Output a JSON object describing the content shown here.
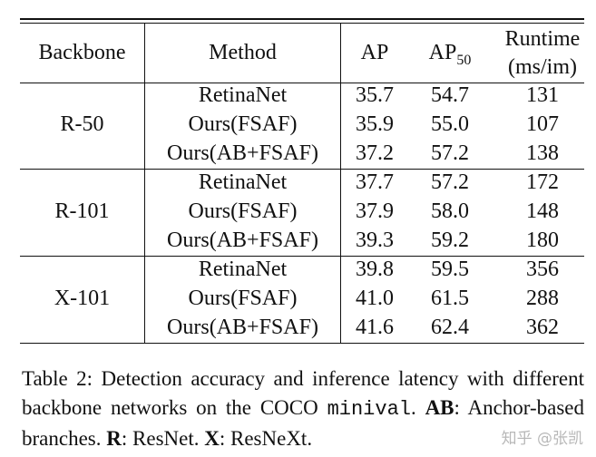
{
  "table": {
    "headers": {
      "backbone": "Backbone",
      "method": "Method",
      "ap": "AP",
      "ap50_base": "AP",
      "ap50_sub": "50",
      "runtime_line1": "Runtime",
      "runtime_line2": "(ms/im)"
    },
    "groups": [
      {
        "backbone": "R-50",
        "rows": [
          {
            "method": "RetinaNet",
            "ap": "35.7",
            "ap50": "54.7",
            "runtime": "131"
          },
          {
            "method": "Ours(FSAF)",
            "ap": "35.9",
            "ap50": "55.0",
            "runtime": "107"
          },
          {
            "method": "Ours(AB+FSAF)",
            "ap": "37.2",
            "ap50": "57.2",
            "runtime": "138"
          }
        ]
      },
      {
        "backbone": "R-101",
        "rows": [
          {
            "method": "RetinaNet",
            "ap": "37.7",
            "ap50": "57.2",
            "runtime": "172"
          },
          {
            "method": "Ours(FSAF)",
            "ap": "37.9",
            "ap50": "58.0",
            "runtime": "148"
          },
          {
            "method": "Ours(AB+FSAF)",
            "ap": "39.3",
            "ap50": "59.2",
            "runtime": "180"
          }
        ]
      },
      {
        "backbone": "X-101",
        "rows": [
          {
            "method": "RetinaNet",
            "ap": "39.8",
            "ap50": "59.5",
            "runtime": "356"
          },
          {
            "method": "Ours(FSAF)",
            "ap": "41.0",
            "ap50": "61.5",
            "runtime": "288"
          },
          {
            "method": "Ours(AB+FSAF)",
            "ap": "41.6",
            "ap50": "62.4",
            "runtime": "362"
          }
        ]
      }
    ]
  },
  "caption": {
    "part1": "Table 2: Detection accuracy and inference latency with different backbone networks on the COCO ",
    "mono": "minival",
    "part2": ". ",
    "ab_bold": "AB",
    "ab_text": ": Anchor-based branches. ",
    "r_bold": "R",
    "r_text": ": ResNet. ",
    "x_bold": "X",
    "x_text": ": ResNeXt."
  },
  "watermark": "知乎 @张凯"
}
